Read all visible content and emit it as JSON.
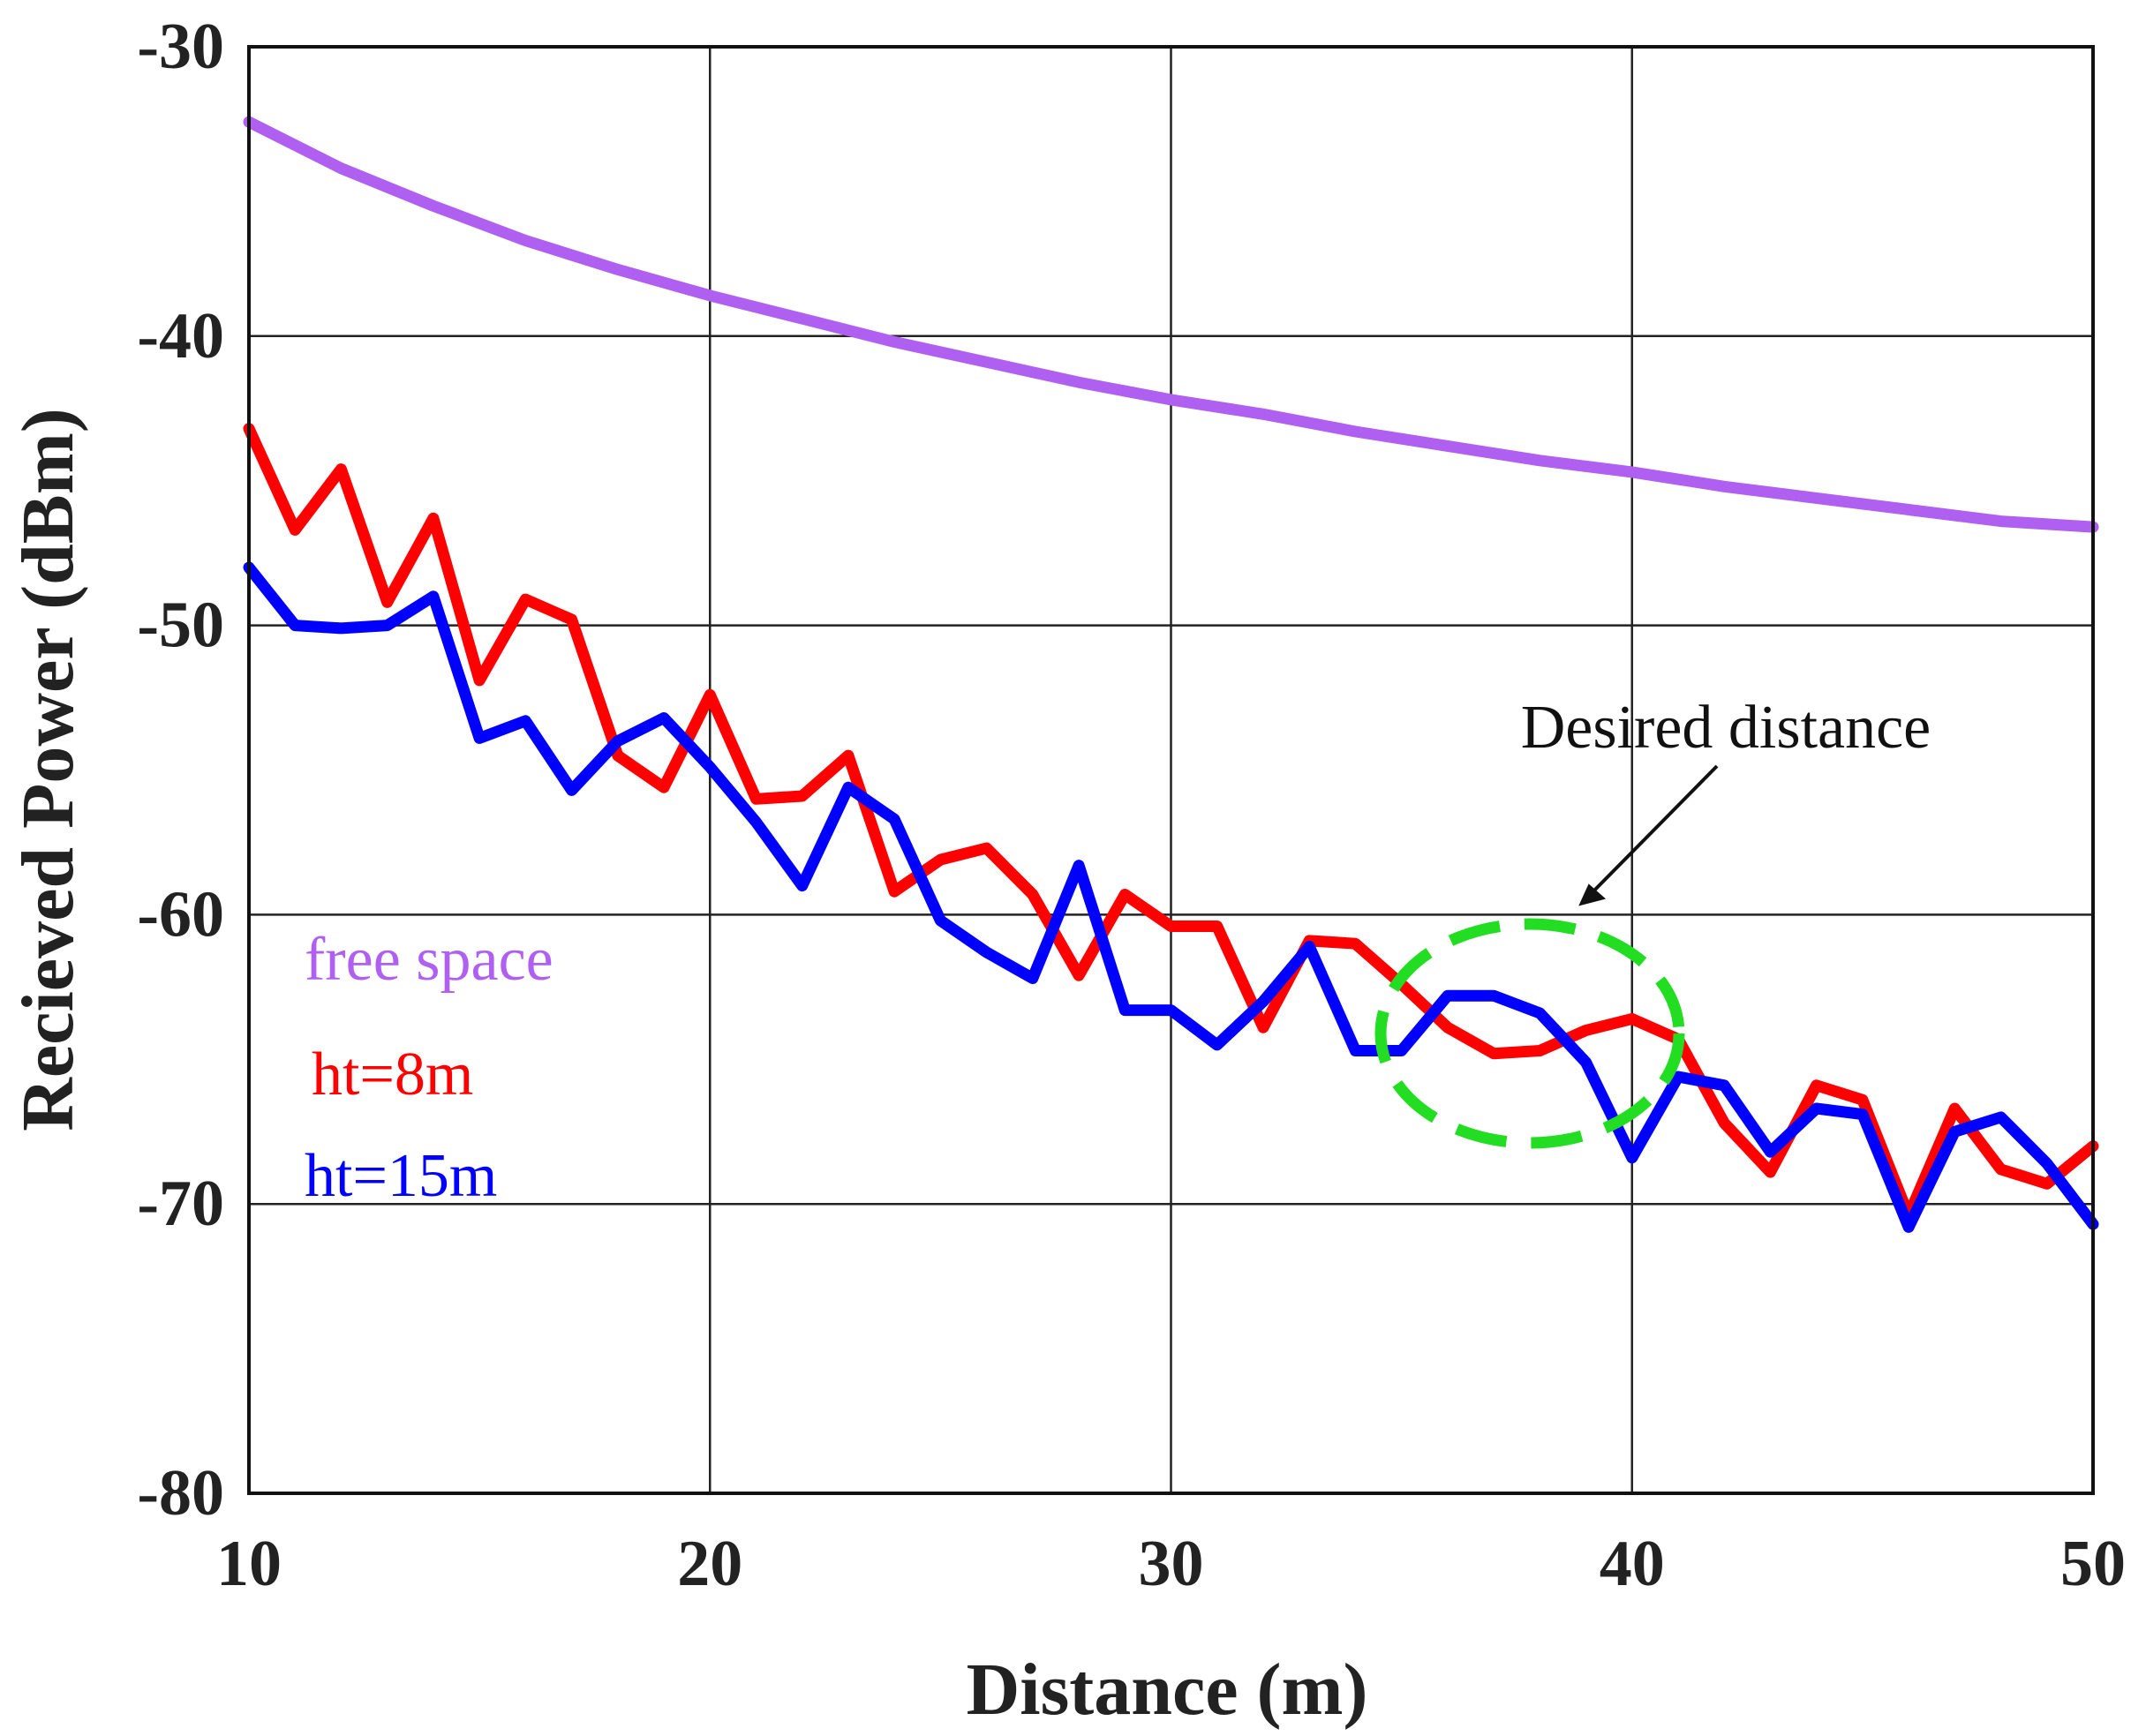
{
  "chart_data": {
    "type": "line",
    "title": "",
    "xlabel": "Distance (m)",
    "ylabel": "Recieved Power (dBm)",
    "xlim": [
      10,
      50
    ],
    "ylim": [
      -80,
      -30
    ],
    "xticks": [
      10,
      20,
      30,
      40,
      50
    ],
    "yticks": [
      -30,
      -40,
      -50,
      -60,
      -70,
      -80
    ],
    "grid": true,
    "legend": {
      "placement": "left-middle",
      "entries": [
        "free space",
        "ht=8m",
        "ht=15m"
      ]
    },
    "series": [
      {
        "name": "free space",
        "color": "#b060f0",
        "x": [
          10,
          12,
          14,
          16,
          18,
          20,
          22,
          24,
          26,
          28,
          30,
          32,
          34,
          36,
          38,
          40,
          42,
          44,
          46,
          48,
          50
        ],
        "values": [
          -32.6,
          -34.2,
          -35.5,
          -36.7,
          -37.7,
          -38.6,
          -39.4,
          -40.2,
          -40.9,
          -41.6,
          -42.2,
          -42.7,
          -43.3,
          -43.8,
          -44.3,
          -44.7,
          -45.2,
          -45.6,
          -46.0,
          -46.4,
          -46.6
        ]
      },
      {
        "name": "ht=8m",
        "color": "#ff0000",
        "x": [
          10,
          11,
          12,
          13,
          14,
          15,
          16,
          17,
          18,
          19,
          20,
          21,
          22,
          23,
          24,
          25,
          26,
          27,
          28,
          29,
          30,
          31,
          32,
          33,
          34,
          35,
          36,
          37,
          38,
          39,
          40,
          41,
          42,
          43,
          44,
          45,
          46,
          47,
          48,
          49,
          50
        ],
        "values": [
          -43.2,
          -46.7,
          -44.6,
          -49.2,
          -46.3,
          -51.9,
          -49.1,
          -49.8,
          -54.5,
          -55.6,
          -52.4,
          -56.0,
          -55.9,
          -54.5,
          -59.2,
          -58.1,
          -57.7,
          -59.3,
          -62.1,
          -59.3,
          -60.4,
          -60.4,
          -63.9,
          -60.9,
          -61.0,
          -62.4,
          -63.9,
          -64.8,
          -64.7,
          -64.0,
          -63.6,
          -64.3,
          -67.2,
          -68.9,
          -65.9,
          -66.4,
          -70.4,
          -66.7,
          -68.8,
          -69.3,
          -68.0
        ]
      },
      {
        "name": "ht=15m",
        "color": "#0000ff",
        "x": [
          10,
          11,
          12,
          13,
          14,
          15,
          16,
          17,
          18,
          19,
          20,
          21,
          22,
          23,
          24,
          25,
          26,
          27,
          28,
          29,
          30,
          31,
          32,
          33,
          34,
          35,
          36,
          37,
          38,
          39,
          40,
          41,
          42,
          43,
          44,
          45,
          46,
          47,
          48,
          49,
          50
        ],
        "values": [
          -48.0,
          -50.0,
          -50.1,
          -50.0,
          -49.0,
          -53.9,
          -53.3,
          -55.7,
          -54.0,
          -53.2,
          -54.9,
          -56.8,
          -59.0,
          -55.6,
          -56.7,
          -60.2,
          -61.3,
          -62.2,
          -58.3,
          -63.3,
          -63.3,
          -64.5,
          -63.0,
          -61.1,
          -64.7,
          -64.7,
          -62.8,
          -62.8,
          -63.4,
          -65.1,
          -68.4,
          -65.6,
          -65.9,
          -68.2,
          -66.7,
          -66.9,
          -70.8,
          -67.5,
          -67.0,
          -68.6,
          -70.7
        ]
      }
    ],
    "annotation": {
      "text": "Desired distance",
      "target": "dashed circle around 35–41 m, about -63 to -67 dBm",
      "circle_color": "#22dd22"
    }
  }
}
